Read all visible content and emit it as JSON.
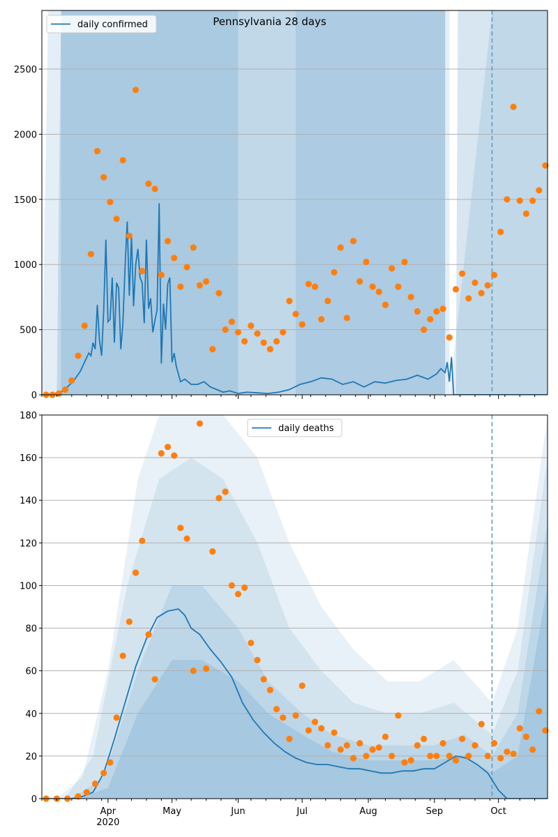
{
  "chart_data": [
    {
      "type": "line",
      "title": "Pennsylvania 28 days",
      "xlabel": "",
      "ylabel": "",
      "xlim": [
        "2020-03-01",
        "2020-10-24"
      ],
      "ylim": [
        0,
        2950
      ],
      "yticks": [
        0,
        500,
        1000,
        1500,
        2000,
        2500
      ],
      "xticks": [],
      "grid": "horizontal",
      "legend_position": "top-left",
      "marker_date": "2020-09-28",
      "series": [
        {
          "name": "daily confirmed",
          "kind": "line",
          "color": "#1f77b4",
          "x": [
            "2020-03-01",
            "2020-03-06",
            "2020-03-10",
            "2020-03-13",
            "2020-03-16",
            "2020-03-19",
            "2020-03-21",
            "2020-03-23",
            "2020-03-24",
            "2020-03-25",
            "2020-03-26",
            "2020-03-27",
            "2020-03-28",
            "2020-03-29",
            "2020-03-30",
            "2020-03-31",
            "2020-04-01",
            "2020-04-02",
            "2020-04-03",
            "2020-04-04",
            "2020-04-05",
            "2020-04-06",
            "2020-04-07",
            "2020-04-08",
            "2020-04-09",
            "2020-04-10",
            "2020-04-11",
            "2020-04-12",
            "2020-04-13",
            "2020-04-14",
            "2020-04-15",
            "2020-04-16",
            "2020-04-17",
            "2020-04-18",
            "2020-04-19",
            "2020-04-20",
            "2020-04-21",
            "2020-04-22",
            "2020-04-23",
            "2020-04-24",
            "2020-04-25",
            "2020-04-26",
            "2020-04-27",
            "2020-04-28",
            "2020-04-29",
            "2020-04-30",
            "2020-05-01",
            "2020-05-02",
            "2020-05-03",
            "2020-05-05",
            "2020-05-07",
            "2020-05-10",
            "2020-05-13",
            "2020-05-16",
            "2020-05-19",
            "2020-05-22",
            "2020-05-25",
            "2020-05-28",
            "2020-06-01",
            "2020-06-05",
            "2020-06-10",
            "2020-06-15",
            "2020-06-20",
            "2020-06-25",
            "2020-06-30",
            "2020-07-05",
            "2020-07-10",
            "2020-07-15",
            "2020-07-20",
            "2020-07-25",
            "2020-07-30",
            "2020-08-04",
            "2020-08-09",
            "2020-08-14",
            "2020-08-19",
            "2020-08-24",
            "2020-08-29",
            "2020-09-02",
            "2020-09-04",
            "2020-09-06",
            "2020-09-07",
            "2020-09-08",
            "2020-09-09",
            "2020-09-10",
            "2020-09-15",
            "2020-09-20",
            "2020-09-28",
            "2020-10-05",
            "2020-10-15",
            "2020-10-24"
          ],
          "values": [
            0,
            5,
            20,
            60,
            110,
            180,
            250,
            320,
            300,
            400,
            350,
            690,
            420,
            300,
            650,
            1190,
            560,
            580,
            900,
            400,
            860,
            820,
            350,
            550,
            980,
            1330,
            760,
            1220,
            680,
            1000,
            1120,
            900,
            860,
            550,
            1190,
            660,
            740,
            480,
            570,
            650,
            1470,
            240,
            700,
            500,
            850,
            900,
            250,
            320,
            220,
            100,
            120,
            80,
            80,
            100,
            60,
            40,
            20,
            30,
            10,
            20,
            15,
            10,
            20,
            40,
            80,
            100,
            130,
            120,
            80,
            100,
            60,
            100,
            90,
            110,
            120,
            150,
            120,
            160,
            200,
            170,
            250,
            100,
            290,
            0,
            0,
            0,
            0,
            0,
            0,
            0
          ]
        },
        {
          "name": "",
          "kind": "scatter",
          "color": "#ff7f0e",
          "x": [
            "2020-03-03",
            "2020-03-06",
            "2020-03-09",
            "2020-03-12",
            "2020-03-15",
            "2020-03-18",
            "2020-03-21",
            "2020-03-24",
            "2020-03-27",
            "2020-03-30",
            "2020-04-02",
            "2020-04-05",
            "2020-04-08",
            "2020-04-11",
            "2020-04-14",
            "2020-04-17",
            "2020-04-20",
            "2020-04-23",
            "2020-04-26",
            "2020-04-29",
            "2020-05-02",
            "2020-05-05",
            "2020-05-08",
            "2020-05-11",
            "2020-05-14",
            "2020-05-17",
            "2020-05-20",
            "2020-05-23",
            "2020-05-26",
            "2020-05-29",
            "2020-06-01",
            "2020-06-04",
            "2020-06-07",
            "2020-06-10",
            "2020-06-13",
            "2020-06-16",
            "2020-06-19",
            "2020-06-22",
            "2020-06-25",
            "2020-06-28",
            "2020-07-01",
            "2020-07-04",
            "2020-07-07",
            "2020-07-10",
            "2020-07-13",
            "2020-07-16",
            "2020-07-19",
            "2020-07-22",
            "2020-07-25",
            "2020-07-28",
            "2020-07-31",
            "2020-08-03",
            "2020-08-06",
            "2020-08-09",
            "2020-08-12",
            "2020-08-15",
            "2020-08-18",
            "2020-08-21",
            "2020-08-24",
            "2020-08-27",
            "2020-08-30",
            "2020-09-02",
            "2020-09-05",
            "2020-09-08",
            "2020-09-11",
            "2020-09-14",
            "2020-09-17",
            "2020-09-20",
            "2020-09-23",
            "2020-09-26",
            "2020-09-29",
            "2020-10-02",
            "2020-10-05",
            "2020-10-08",
            "2020-10-11",
            "2020-10-14",
            "2020-10-17",
            "2020-10-20",
            "2020-10-23"
          ],
          "values": [
            0,
            0,
            10,
            40,
            110,
            300,
            530,
            1080,
            1870,
            1670,
            1480,
            1350,
            1800,
            1220,
            2340,
            950,
            1620,
            1580,
            920,
            1180,
            1050,
            830,
            980,
            1130,
            840,
            870,
            350,
            780,
            500,
            560,
            480,
            410,
            530,
            470,
            400,
            350,
            410,
            480,
            720,
            620,
            540,
            850,
            830,
            580,
            720,
            940,
            1130,
            590,
            1180,
            870,
            1020,
            830,
            790,
            690,
            970,
            830,
            1020,
            750,
            640,
            500,
            580,
            640,
            660,
            440,
            810,
            930,
            740,
            860,
            780,
            840,
            920,
            1250,
            1500,
            2210,
            1490,
            1390,
            1490,
            1570,
            1760
          ]
        }
      ]
    },
    {
      "type": "line",
      "title": "",
      "xlabel": "",
      "ylabel": "",
      "xlim": [
        "2020-03-01",
        "2020-10-24"
      ],
      "ylim": [
        0,
        180
      ],
      "yticks": [
        0,
        20,
        40,
        60,
        80,
        100,
        120,
        140,
        160,
        180
      ],
      "xticks": [
        "Apr",
        "May",
        "Jun",
        "Jul",
        "Aug",
        "Sep",
        "Oct"
      ],
      "xtick_dates": [
        "2020-04-01",
        "2020-05-01",
        "2020-06-01",
        "2020-07-01",
        "2020-08-01",
        "2020-09-01",
        "2020-10-01"
      ],
      "year_label": "2020",
      "grid": "horizontal",
      "legend_position": "top-center",
      "marker_date": "2020-09-28",
      "series": [
        {
          "name": "daily deaths",
          "kind": "line",
          "color": "#1f77b4",
          "x": [
            "2020-03-01",
            "2020-03-10",
            "2020-03-15",
            "2020-03-20",
            "2020-03-25",
            "2020-03-30",
            "2020-04-04",
            "2020-04-09",
            "2020-04-14",
            "2020-04-19",
            "2020-04-24",
            "2020-04-29",
            "2020-05-04",
            "2020-05-07",
            "2020-05-10",
            "2020-05-14",
            "2020-05-19",
            "2020-05-24",
            "2020-05-29",
            "2020-06-03",
            "2020-06-08",
            "2020-06-13",
            "2020-06-18",
            "2020-06-23",
            "2020-06-28",
            "2020-07-03",
            "2020-07-08",
            "2020-07-13",
            "2020-07-18",
            "2020-07-23",
            "2020-07-28",
            "2020-08-02",
            "2020-08-07",
            "2020-08-12",
            "2020-08-17",
            "2020-08-22",
            "2020-08-27",
            "2020-09-01",
            "2020-09-06",
            "2020-09-11",
            "2020-09-16",
            "2020-09-21",
            "2020-09-26",
            "2020-10-01",
            "2020-10-05",
            "2020-10-15",
            "2020-10-24"
          ],
          "values": [
            0,
            0,
            0,
            1,
            3,
            12,
            28,
            45,
            62,
            75,
            85,
            88,
            89,
            86,
            80,
            77,
            70,
            64,
            57,
            45,
            37,
            31,
            26,
            22,
            19,
            17,
            16,
            16,
            15,
            14,
            14,
            13,
            12,
            12,
            13,
            13,
            14,
            14,
            17,
            20,
            19,
            16,
            12,
            4,
            0,
            0,
            0
          ]
        },
        {
          "name": "",
          "kind": "scatter",
          "color": "#ff7f0e",
          "x": [
            "2020-03-03",
            "2020-03-08",
            "2020-03-13",
            "2020-03-18",
            "2020-03-22",
            "2020-03-26",
            "2020-03-30",
            "2020-04-02",
            "2020-04-05",
            "2020-04-08",
            "2020-04-11",
            "2020-04-14",
            "2020-04-17",
            "2020-04-20",
            "2020-04-23",
            "2020-04-26",
            "2020-04-29",
            "2020-05-02",
            "2020-05-05",
            "2020-05-08",
            "2020-05-11",
            "2020-05-14",
            "2020-05-17",
            "2020-05-20",
            "2020-05-23",
            "2020-05-26",
            "2020-05-29",
            "2020-06-01",
            "2020-06-04",
            "2020-06-07",
            "2020-06-10",
            "2020-06-13",
            "2020-06-16",
            "2020-06-19",
            "2020-06-22",
            "2020-06-25",
            "2020-06-28",
            "2020-07-01",
            "2020-07-04",
            "2020-07-07",
            "2020-07-10",
            "2020-07-13",
            "2020-07-16",
            "2020-07-19",
            "2020-07-22",
            "2020-07-25",
            "2020-07-28",
            "2020-07-31",
            "2020-08-03",
            "2020-08-06",
            "2020-08-09",
            "2020-08-12",
            "2020-08-15",
            "2020-08-18",
            "2020-08-21",
            "2020-08-24",
            "2020-08-27",
            "2020-08-30",
            "2020-09-02",
            "2020-09-05",
            "2020-09-08",
            "2020-09-11",
            "2020-09-14",
            "2020-09-17",
            "2020-09-20",
            "2020-09-23",
            "2020-09-26",
            "2020-09-29",
            "2020-10-02",
            "2020-10-05",
            "2020-10-08",
            "2020-10-11",
            "2020-10-14",
            "2020-10-17",
            "2020-10-20",
            "2020-10-23"
          ],
          "values": [
            0,
            0,
            0,
            1,
            3,
            7,
            12,
            17,
            38,
            67,
            83,
            106,
            121,
            77,
            56,
            162,
            165,
            161,
            127,
            122,
            60,
            176,
            61,
            116,
            141,
            144,
            100,
            96,
            99,
            73,
            65,
            56,
            51,
            42,
            38,
            28,
            39,
            53,
            32,
            36,
            33,
            25,
            31,
            23,
            25,
            19,
            26,
            20,
            23,
            24,
            29,
            20,
            39,
            17,
            18,
            25,
            28,
            20,
            20,
            26,
            20,
            18,
            28,
            20,
            25,
            35,
            20,
            26,
            19,
            22,
            21,
            33,
            29,
            23,
            41,
            32
          ]
        }
      ]
    }
  ]
}
